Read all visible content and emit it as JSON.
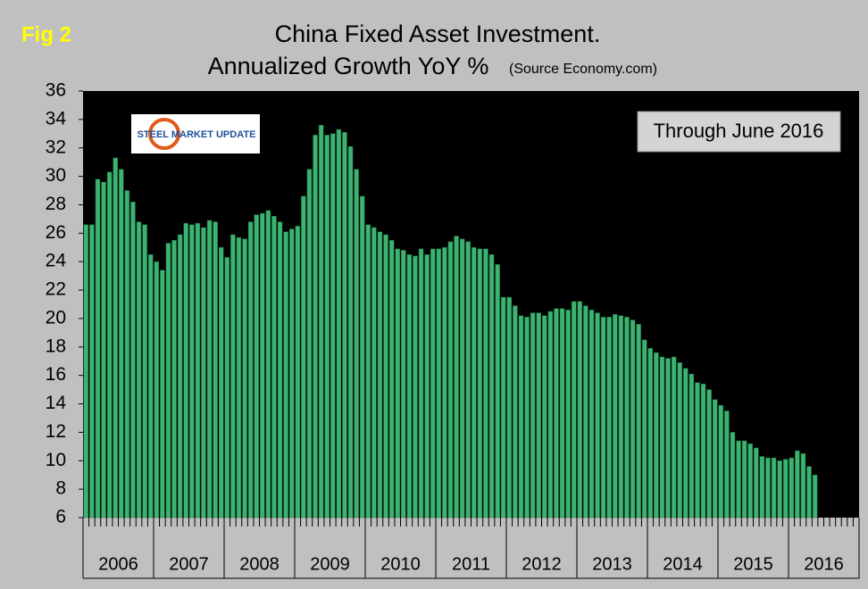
{
  "chart_data": {
    "type": "bar",
    "figure_label": "Fig 2",
    "title": "China Fixed Asset Investment.",
    "subtitle": "Annualized Growth YoY %",
    "source": "(Source Economy.com)",
    "annotation": "Through June 2016",
    "logo": "STEEL MARKET UPDATE",
    "color": "#3cb371",
    "year_labels": [
      "2006",
      "2007",
      "2008",
      "2009",
      "2010",
      "2011",
      "2012",
      "2013",
      "2014",
      "2015",
      "2016"
    ],
    "values": [
      26.6,
      26.6,
      29.8,
      29.6,
      30.3,
      31.3,
      30.5,
      29.0,
      28.2,
      26.8,
      26.6,
      24.5,
      24.0,
      23.4,
      25.3,
      25.5,
      25.9,
      26.7,
      26.6,
      26.7,
      26.4,
      26.9,
      26.8,
      25.0,
      24.3,
      25.9,
      25.7,
      25.6,
      26.8,
      27.3,
      27.4,
      27.6,
      27.2,
      26.8,
      26.1,
      26.3,
      26.5,
      28.6,
      30.5,
      32.9,
      33.6,
      32.9,
      33.0,
      33.3,
      33.1,
      32.1,
      30.5,
      28.6,
      26.6,
      26.4,
      26.1,
      25.9,
      25.5,
      24.9,
      24.8,
      24.5,
      24.4,
      24.9,
      24.5,
      24.9,
      24.9,
      25.0,
      25.4,
      25.8,
      25.6,
      25.4,
      25.0,
      24.9,
      24.9,
      24.5,
      23.8,
      21.5,
      21.5,
      20.9,
      20.2,
      20.1,
      20.4,
      20.4,
      20.2,
      20.5,
      20.7,
      20.7,
      20.6,
      21.2,
      21.2,
      20.9,
      20.6,
      20.4,
      20.1,
      20.1,
      20.3,
      20.2,
      20.1,
      19.9,
      19.6,
      18.5,
      17.9,
      17.6,
      17.3,
      17.2,
      17.3,
      16.9,
      16.5,
      16.1,
      15.5,
      15.4,
      15.0,
      14.3,
      13.9,
      13.5,
      12.0,
      11.4,
      11.4,
      11.2,
      10.9,
      10.3,
      10.2,
      10.2,
      10.0,
      10.1,
      10.2,
      10.7,
      10.5,
      9.6,
      9.0,
      null
    ],
    "ylim": [
      6,
      36
    ],
    "yticks": [
      6,
      8,
      10,
      12,
      14,
      16,
      18,
      20,
      22,
      24,
      26,
      28,
      30,
      32,
      34,
      36
    ]
  }
}
